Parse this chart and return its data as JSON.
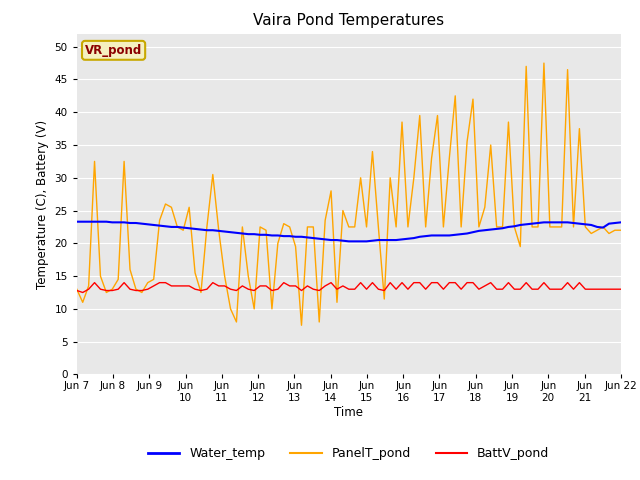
{
  "title": "Vaira Pond Temperatures",
  "ylabel": "Temperature (C), Battery (V)",
  "xlabel": "Time",
  "station_label": "VR_pond",
  "ylim": [
    0,
    52
  ],
  "yticks": [
    0,
    5,
    10,
    15,
    20,
    25,
    30,
    35,
    40,
    45,
    50
  ],
  "xtick_labels": [
    "Jun 7",
    "Jun 8",
    "Jun 9",
    "Jun 10",
    "Jun 11",
    "Jun 12",
    "Jun 13",
    "Jun 14",
    "Jun 15",
    "Jun 16",
    "Jun 17",
    "Jun 18",
    "Jun 19",
    "Jun 20",
    "Jun 21",
    "Jun 22"
  ],
  "bg_color": "#e8e8e8",
  "water_temp": [
    23.3,
    23.3,
    23.3,
    23.3,
    23.3,
    23.3,
    23.2,
    23.2,
    23.2,
    23.1,
    23.1,
    23.0,
    22.9,
    22.8,
    22.7,
    22.6,
    22.5,
    22.5,
    22.4,
    22.3,
    22.2,
    22.1,
    22.0,
    22.0,
    21.9,
    21.8,
    21.7,
    21.6,
    21.5,
    21.4,
    21.4,
    21.3,
    21.3,
    21.2,
    21.2,
    21.1,
    21.1,
    21.0,
    21.0,
    20.9,
    20.8,
    20.7,
    20.6,
    20.5,
    20.5,
    20.4,
    20.3,
    20.3,
    20.3,
    20.3,
    20.4,
    20.5,
    20.5,
    20.5,
    20.5,
    20.6,
    20.7,
    20.8,
    21.0,
    21.1,
    21.2,
    21.2,
    21.2,
    21.2,
    21.3,
    21.4,
    21.5,
    21.7,
    21.9,
    22.0,
    22.1,
    22.2,
    22.3,
    22.5,
    22.6,
    22.8,
    22.9,
    23.0,
    23.1,
    23.2,
    23.2,
    23.2,
    23.2,
    23.2,
    23.1,
    23.0,
    22.9,
    22.8,
    22.5,
    22.4,
    23.0,
    23.1,
    23.2
  ],
  "panel_temp": [
    13.0,
    11.0,
    13.5,
    32.5,
    15.0,
    12.5,
    13.0,
    14.5,
    32.5,
    16.0,
    13.0,
    12.5,
    14.0,
    14.5,
    23.5,
    26.0,
    25.5,
    22.5,
    22.0,
    25.5,
    15.5,
    12.5,
    22.5,
    30.5,
    22.0,
    15.0,
    10.0,
    8.0,
    22.5,
    15.0,
    10.0,
    22.5,
    22.0,
    10.0,
    20.0,
    23.0,
    22.5,
    19.5,
    7.5,
    22.5,
    22.5,
    8.0,
    23.5,
    28.0,
    11.0,
    25.0,
    22.5,
    22.5,
    30.0,
    22.5,
    34.0,
    22.5,
    11.5,
    30.0,
    22.5,
    38.5,
    22.5,
    30.0,
    39.5,
    22.5,
    33.0,
    39.5,
    22.5,
    33.0,
    42.5,
    22.5,
    35.5,
    42.0,
    22.5,
    25.5,
    35.0,
    22.5,
    22.5,
    38.5,
    22.5,
    19.5,
    47.0,
    22.5,
    22.5,
    47.5,
    22.5,
    22.5,
    22.5,
    46.5,
    22.5,
    37.5,
    22.5,
    21.5,
    22.0,
    22.5,
    21.5,
    22.0,
    22.0
  ],
  "batt_volt": [
    12.8,
    12.5,
    13.0,
    14.0,
    13.0,
    12.8,
    12.8,
    13.0,
    14.0,
    13.0,
    12.8,
    12.8,
    13.0,
    13.5,
    14.0,
    14.0,
    13.5,
    13.5,
    13.5,
    13.5,
    13.0,
    12.8,
    13.0,
    14.0,
    13.5,
    13.5,
    13.0,
    12.8,
    13.5,
    13.0,
    12.8,
    13.5,
    13.5,
    12.8,
    13.0,
    14.0,
    13.5,
    13.5,
    12.8,
    13.5,
    13.0,
    12.8,
    13.5,
    14.0,
    13.0,
    13.5,
    13.0,
    13.0,
    14.0,
    13.0,
    14.0,
    13.0,
    12.8,
    14.0,
    13.0,
    14.0,
    13.0,
    14.0,
    14.0,
    13.0,
    14.0,
    14.0,
    13.0,
    14.0,
    14.0,
    13.0,
    14.0,
    14.0,
    13.0,
    13.5,
    14.0,
    13.0,
    13.0,
    14.0,
    13.0,
    13.0,
    14.0,
    13.0,
    13.0,
    14.0,
    13.0,
    13.0,
    13.0,
    14.0,
    13.0,
    14.0,
    13.0,
    13.0,
    13.0,
    13.0,
    13.0,
    13.0,
    13.0
  ]
}
